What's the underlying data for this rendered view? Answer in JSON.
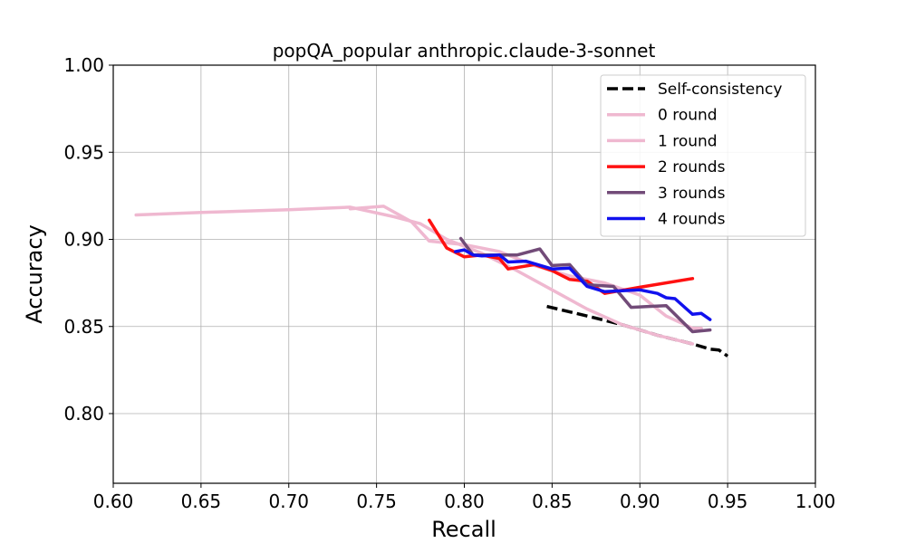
{
  "chart_data": {
    "type": "line",
    "title": "popQA_popular anthropic.claude-3-sonnet",
    "xlabel": "Recall",
    "ylabel": "Accuracy",
    "xlim": [
      0.6,
      1.0
    ],
    "ylim": [
      0.76,
      1.0
    ],
    "xticks": [
      "0.60",
      "0.65",
      "0.70",
      "0.75",
      "0.80",
      "0.85",
      "0.90",
      "0.95",
      "1.00"
    ],
    "yticks": [
      "0.80",
      "0.85",
      "0.90",
      "0.95",
      "1.00"
    ],
    "grid": true,
    "legend_position": "top-right",
    "series": [
      {
        "name": "Self-consistency",
        "color": "#000000",
        "dash": true,
        "x": [
          0.847,
          0.87,
          0.89,
          0.91,
          0.93,
          0.94,
          0.945,
          0.95
        ],
        "y": [
          0.8615,
          0.856,
          0.851,
          0.845,
          0.84,
          0.837,
          0.8365,
          0.833
        ]
      },
      {
        "name": "0 round",
        "color": "#efb8d0",
        "dash": false,
        "x": [
          0.613,
          0.65,
          0.7,
          0.735,
          0.76,
          0.775,
          0.79,
          0.81,
          0.83,
          0.85,
          0.87,
          0.89,
          0.91,
          0.93
        ],
        "y": [
          0.914,
          0.9155,
          0.917,
          0.9185,
          0.913,
          0.909,
          0.9,
          0.892,
          0.882,
          0.871,
          0.86,
          0.851,
          0.845,
          0.84
        ]
      },
      {
        "name": "1 round",
        "color": "#efb8d0",
        "dash": false,
        "x": [
          0.735,
          0.754,
          0.77,
          0.78,
          0.8,
          0.82,
          0.84,
          0.86,
          0.88,
          0.9,
          0.915,
          0.93,
          0.935
        ],
        "y": [
          0.9175,
          0.919,
          0.91,
          0.899,
          0.897,
          0.893,
          0.885,
          0.879,
          0.875,
          0.868,
          0.856,
          0.849,
          0.849
        ]
      },
      {
        "name": "2 rounds",
        "color": "#ff1111",
        "dash": false,
        "x": [
          0.78,
          0.785,
          0.79,
          0.8,
          0.81,
          0.82,
          0.825,
          0.84,
          0.85,
          0.86,
          0.87,
          0.88,
          0.9,
          0.93
        ],
        "y": [
          0.911,
          0.903,
          0.895,
          0.89,
          0.891,
          0.889,
          0.883,
          0.8855,
          0.882,
          0.877,
          0.876,
          0.869,
          0.8725,
          0.8775
        ]
      },
      {
        "name": "3 rounds",
        "color": "#724b78",
        "dash": false,
        "x": [
          0.798,
          0.805,
          0.83,
          0.843,
          0.85,
          0.86,
          0.87,
          0.885,
          0.895,
          0.905,
          0.915,
          0.93,
          0.94
        ],
        "y": [
          0.9005,
          0.891,
          0.891,
          0.8945,
          0.885,
          0.8855,
          0.874,
          0.873,
          0.861,
          0.8615,
          0.862,
          0.847,
          0.848
        ]
      },
      {
        "name": "4 rounds",
        "color": "#1111ee",
        "dash": false,
        "x": [
          0.795,
          0.8,
          0.805,
          0.81,
          0.82,
          0.825,
          0.835,
          0.85,
          0.86,
          0.87,
          0.88,
          0.89,
          0.9,
          0.91,
          0.915,
          0.92,
          0.93,
          0.935,
          0.94
        ],
        "y": [
          0.893,
          0.894,
          0.891,
          0.8905,
          0.891,
          0.887,
          0.8875,
          0.883,
          0.8835,
          0.873,
          0.87,
          0.8705,
          0.871,
          0.869,
          0.8665,
          0.866,
          0.857,
          0.8575,
          0.854
        ]
      }
    ]
  }
}
